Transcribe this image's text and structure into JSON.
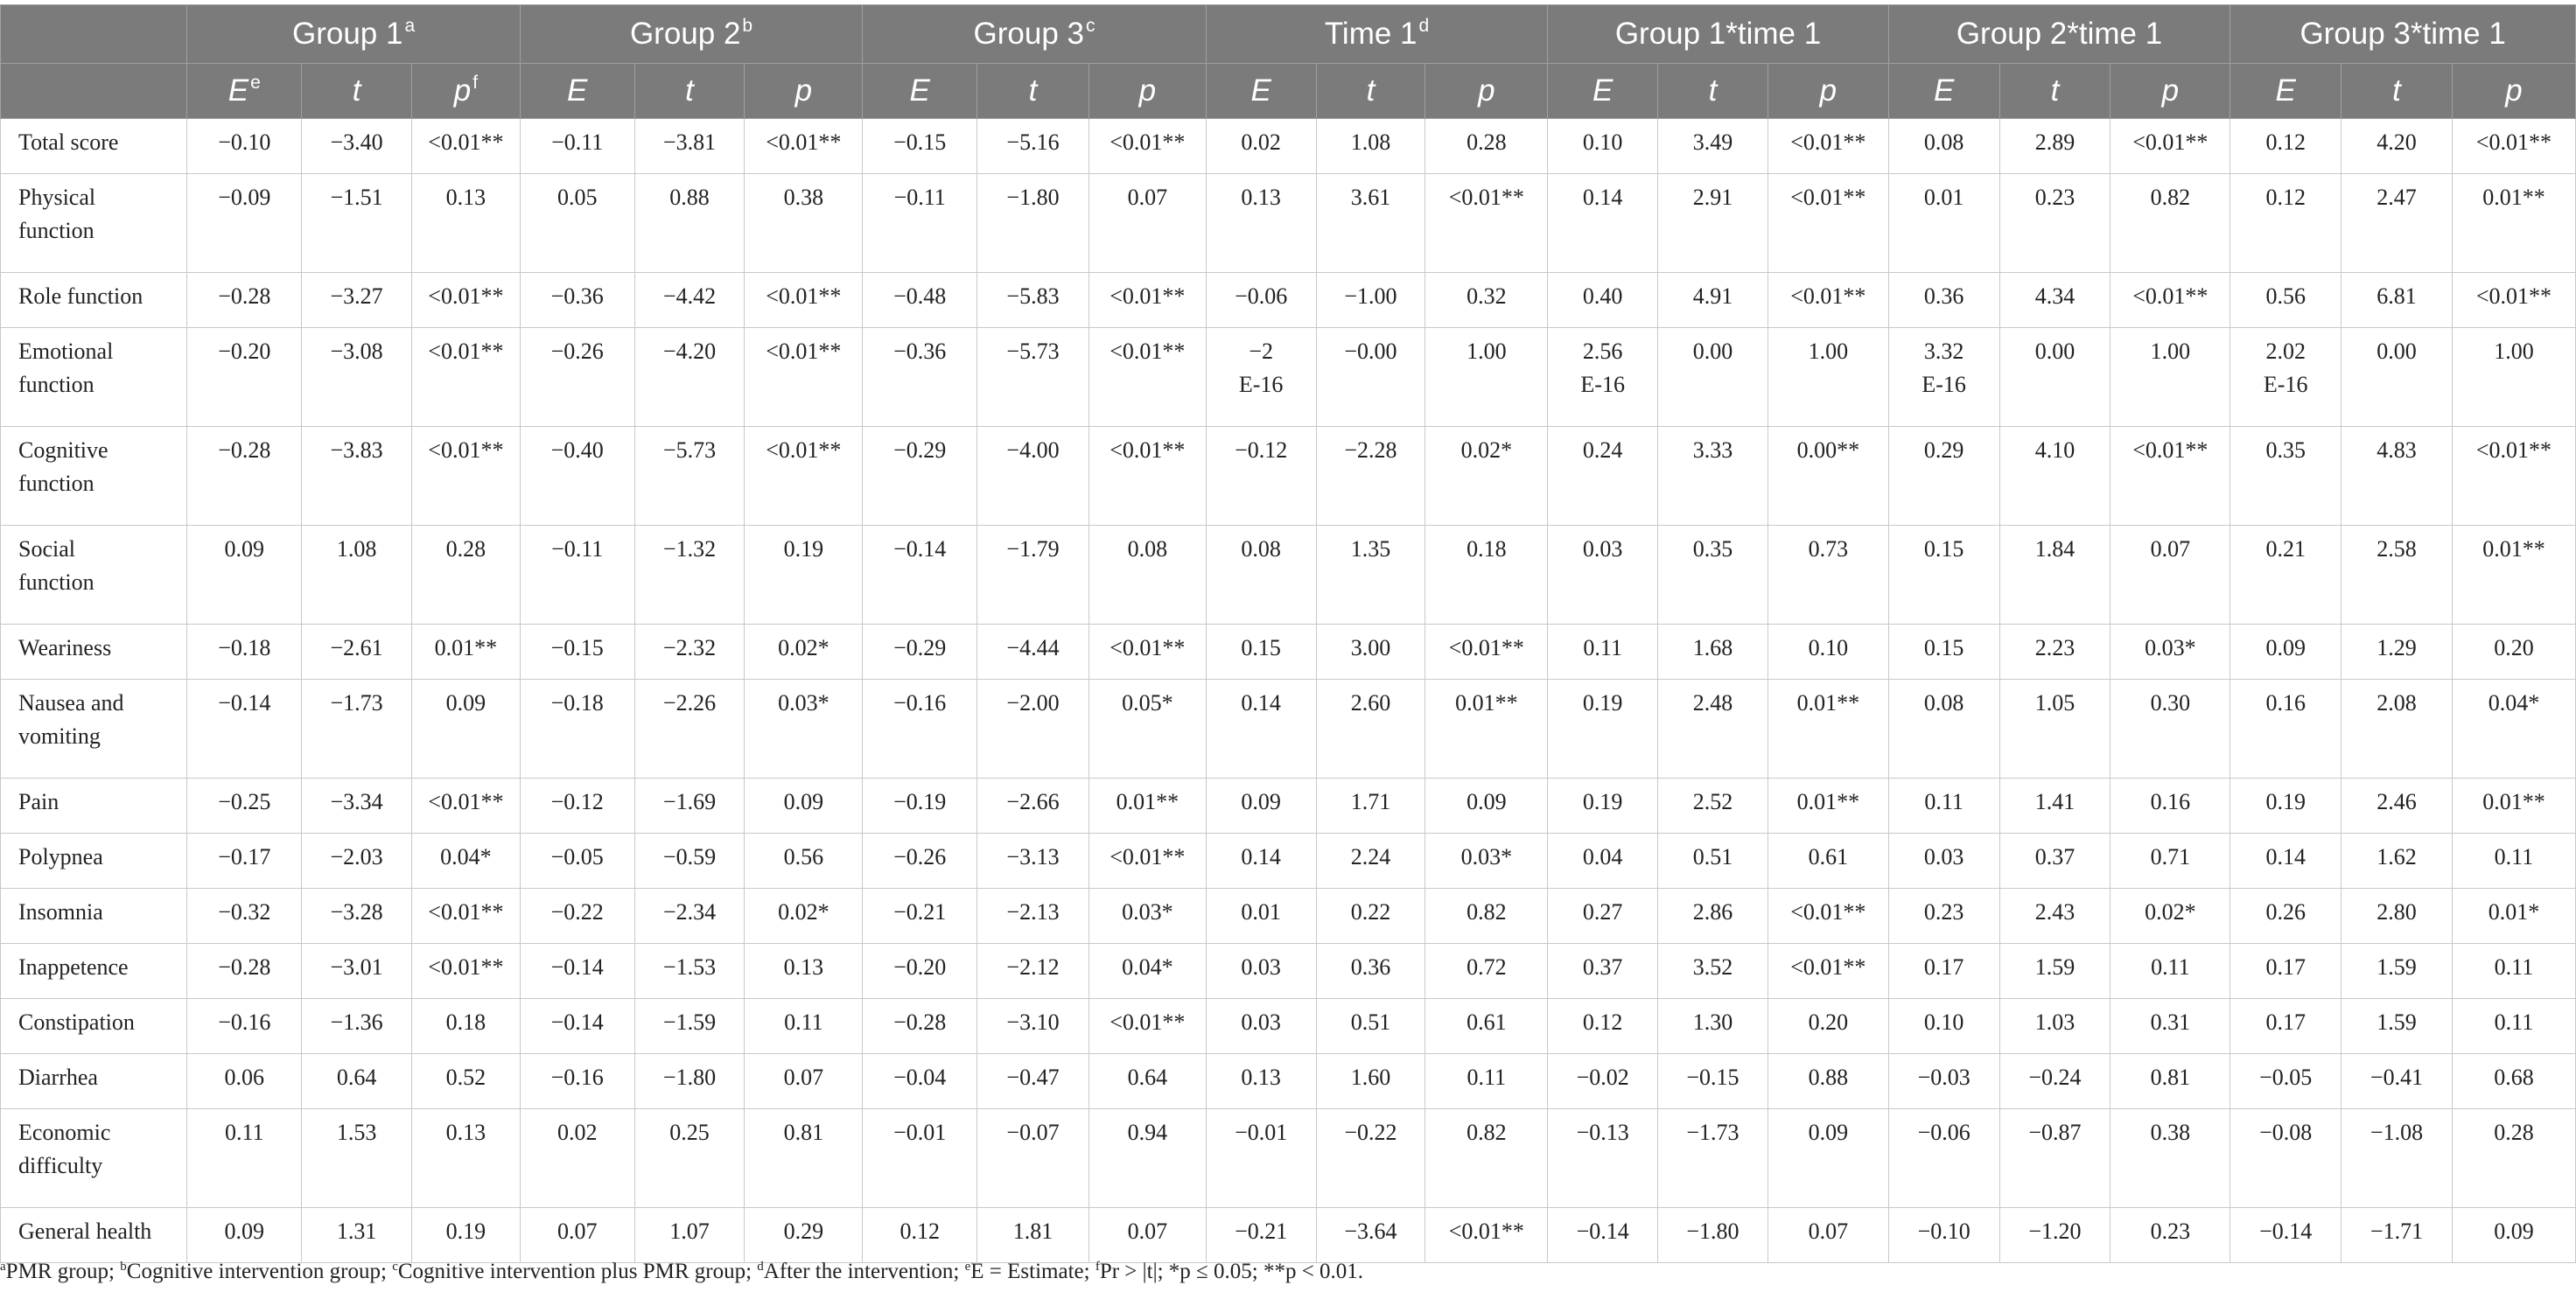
{
  "header": {
    "groups": [
      {
        "label": "Group 1",
        "sup": "a"
      },
      {
        "label": "Group 2",
        "sup": "b"
      },
      {
        "label": "Group 3",
        "sup": "c"
      },
      {
        "label": "Time 1",
        "sup": "d"
      },
      {
        "label": "Group 1*time 1",
        "sup": ""
      },
      {
        "label": "Group 2*time 1",
        "sup": ""
      },
      {
        "label": "Group 3*time 1",
        "sup": ""
      }
    ],
    "stats": [
      {
        "label": "E",
        "sup": "e"
      },
      {
        "label": "t",
        "sup": ""
      },
      {
        "label": "p",
        "sup": "f"
      },
      {
        "label": "E",
        "sup": ""
      },
      {
        "label": "t",
        "sup": ""
      },
      {
        "label": "p",
        "sup": ""
      },
      {
        "label": "E",
        "sup": ""
      },
      {
        "label": "t",
        "sup": ""
      },
      {
        "label": "p",
        "sup": ""
      },
      {
        "label": "E",
        "sup": ""
      },
      {
        "label": "t",
        "sup": ""
      },
      {
        "label": "p",
        "sup": ""
      },
      {
        "label": "E",
        "sup": ""
      },
      {
        "label": "t",
        "sup": ""
      },
      {
        "label": "p",
        "sup": ""
      },
      {
        "label": "E",
        "sup": ""
      },
      {
        "label": "t",
        "sup": ""
      },
      {
        "label": "p",
        "sup": ""
      },
      {
        "label": "E",
        "sup": ""
      },
      {
        "label": "t",
        "sup": ""
      },
      {
        "label": "p",
        "sup": ""
      }
    ]
  },
  "rows": [
    {
      "label": [
        "Total score"
      ],
      "cells": [
        [
          "−0.10"
        ],
        [
          "−3.40"
        ],
        [
          "<0.01**"
        ],
        [
          "−0.11"
        ],
        [
          "−3.81"
        ],
        [
          "<0.01**"
        ],
        [
          "−0.15"
        ],
        [
          "−5.16"
        ],
        [
          "<0.01**"
        ],
        [
          "0.02"
        ],
        [
          "1.08"
        ],
        [
          "0.28"
        ],
        [
          "0.10"
        ],
        [
          "3.49"
        ],
        [
          "<0.01**"
        ],
        [
          "0.08"
        ],
        [
          "2.89"
        ],
        [
          "<0.01**"
        ],
        [
          "0.12"
        ],
        [
          "4.20"
        ],
        [
          "<0.01**"
        ]
      ]
    },
    {
      "label": [
        "Physical",
        "function"
      ],
      "cells": [
        [
          "−0.09"
        ],
        [
          "−1.51"
        ],
        [
          "0.13"
        ],
        [
          "0.05"
        ],
        [
          "0.88"
        ],
        [
          "0.38"
        ],
        [
          "−0.11"
        ],
        [
          "−1.80"
        ],
        [
          "0.07"
        ],
        [
          "0.13"
        ],
        [
          "3.61"
        ],
        [
          "<0.01**"
        ],
        [
          "0.14"
        ],
        [
          "2.91"
        ],
        [
          "<0.01**"
        ],
        [
          "0.01"
        ],
        [
          "0.23"
        ],
        [
          "0.82"
        ],
        [
          "0.12"
        ],
        [
          "2.47"
        ],
        [
          "0.01**"
        ]
      ]
    },
    {
      "label": [
        "Role function"
      ],
      "cells": [
        [
          "−0.28"
        ],
        [
          "−3.27"
        ],
        [
          "<0.01**"
        ],
        [
          "−0.36"
        ],
        [
          "−4.42"
        ],
        [
          "<0.01**"
        ],
        [
          "−0.48"
        ],
        [
          "−5.83"
        ],
        [
          "<0.01**"
        ],
        [
          "−0.06"
        ],
        [
          "−1.00"
        ],
        [
          "0.32"
        ],
        [
          "0.40"
        ],
        [
          "4.91"
        ],
        [
          "<0.01**"
        ],
        [
          "0.36"
        ],
        [
          "4.34"
        ],
        [
          "<0.01**"
        ],
        [
          "0.56"
        ],
        [
          "6.81"
        ],
        [
          "<0.01**"
        ]
      ]
    },
    {
      "label": [
        "Emotional",
        "function"
      ],
      "cells": [
        [
          "−0.20"
        ],
        [
          "−3.08"
        ],
        [
          "<0.01**"
        ],
        [
          "−0.26"
        ],
        [
          "−4.20"
        ],
        [
          "<0.01**"
        ],
        [
          "−0.36"
        ],
        [
          "−5.73"
        ],
        [
          "<0.01**"
        ],
        [
          "−2",
          "E-16"
        ],
        [
          "−0.00"
        ],
        [
          "1.00"
        ],
        [
          "2.56",
          "E-16"
        ],
        [
          "0.00"
        ],
        [
          "1.00"
        ],
        [
          "3.32",
          "E-16"
        ],
        [
          "0.00"
        ],
        [
          "1.00"
        ],
        [
          "2.02",
          "E-16"
        ],
        [
          "0.00"
        ],
        [
          "1.00"
        ]
      ]
    },
    {
      "label": [
        "Cognitive",
        "function"
      ],
      "cells": [
        [
          "−0.28"
        ],
        [
          "−3.83"
        ],
        [
          "<0.01**"
        ],
        [
          "−0.40"
        ],
        [
          "−5.73"
        ],
        [
          "<0.01**"
        ],
        [
          "−0.29"
        ],
        [
          "−4.00"
        ],
        [
          "<0.01**"
        ],
        [
          "−0.12"
        ],
        [
          "−2.28"
        ],
        [
          "0.02*"
        ],
        [
          "0.24"
        ],
        [
          "3.33"
        ],
        [
          "0.00**"
        ],
        [
          "0.29"
        ],
        [
          "4.10"
        ],
        [
          "<0.01**"
        ],
        [
          "0.35"
        ],
        [
          "4.83"
        ],
        [
          "<0.01**"
        ]
      ]
    },
    {
      "label": [
        "Social",
        "function"
      ],
      "cells": [
        [
          "0.09"
        ],
        [
          "1.08"
        ],
        [
          "0.28"
        ],
        [
          "−0.11"
        ],
        [
          "−1.32"
        ],
        [
          "0.19"
        ],
        [
          "−0.14"
        ],
        [
          "−1.79"
        ],
        [
          "0.08"
        ],
        [
          "0.08"
        ],
        [
          "1.35"
        ],
        [
          "0.18"
        ],
        [
          "0.03"
        ],
        [
          "0.35"
        ],
        [
          "0.73"
        ],
        [
          "0.15"
        ],
        [
          "1.84"
        ],
        [
          "0.07"
        ],
        [
          "0.21"
        ],
        [
          "2.58"
        ],
        [
          "0.01**"
        ]
      ]
    },
    {
      "label": [
        "Weariness"
      ],
      "cells": [
        [
          "−0.18"
        ],
        [
          "−2.61"
        ],
        [
          "0.01**"
        ],
        [
          "−0.15"
        ],
        [
          "−2.32"
        ],
        [
          "0.02*"
        ],
        [
          "−0.29"
        ],
        [
          "−4.44"
        ],
        [
          "<0.01**"
        ],
        [
          "0.15"
        ],
        [
          "3.00"
        ],
        [
          "<0.01**"
        ],
        [
          "0.11"
        ],
        [
          "1.68"
        ],
        [
          "0.10"
        ],
        [
          "0.15"
        ],
        [
          "2.23"
        ],
        [
          "0.03*"
        ],
        [
          "0.09"
        ],
        [
          "1.29"
        ],
        [
          "0.20"
        ]
      ]
    },
    {
      "label": [
        "Nausea and",
        "vomiting"
      ],
      "cells": [
        [
          "−0.14"
        ],
        [
          "−1.73"
        ],
        [
          "0.09"
        ],
        [
          "−0.18"
        ],
        [
          "−2.26"
        ],
        [
          "0.03*"
        ],
        [
          "−0.16"
        ],
        [
          "−2.00"
        ],
        [
          "0.05*"
        ],
        [
          "0.14"
        ],
        [
          "2.60"
        ],
        [
          "0.01**"
        ],
        [
          "0.19"
        ],
        [
          "2.48"
        ],
        [
          "0.01**"
        ],
        [
          "0.08"
        ],
        [
          "1.05"
        ],
        [
          "0.30"
        ],
        [
          "0.16"
        ],
        [
          "2.08"
        ],
        [
          "0.04*"
        ]
      ]
    },
    {
      "label": [
        "Pain"
      ],
      "cells": [
        [
          "−0.25"
        ],
        [
          "−3.34"
        ],
        [
          "<0.01**"
        ],
        [
          "−0.12"
        ],
        [
          "−1.69"
        ],
        [
          "0.09"
        ],
        [
          "−0.19"
        ],
        [
          "−2.66"
        ],
        [
          "0.01**"
        ],
        [
          "0.09"
        ],
        [
          "1.71"
        ],
        [
          "0.09"
        ],
        [
          "0.19"
        ],
        [
          "2.52"
        ],
        [
          "0.01**"
        ],
        [
          "0.11"
        ],
        [
          "1.41"
        ],
        [
          "0.16"
        ],
        [
          "0.19"
        ],
        [
          "2.46"
        ],
        [
          "0.01**"
        ]
      ]
    },
    {
      "label": [
        "Polypnea"
      ],
      "cells": [
        [
          "−0.17"
        ],
        [
          "−2.03"
        ],
        [
          "0.04*"
        ],
        [
          "−0.05"
        ],
        [
          "−0.59"
        ],
        [
          "0.56"
        ],
        [
          "−0.26"
        ],
        [
          "−3.13"
        ],
        [
          "<0.01**"
        ],
        [
          "0.14"
        ],
        [
          "2.24"
        ],
        [
          "0.03*"
        ],
        [
          "0.04"
        ],
        [
          "0.51"
        ],
        [
          "0.61"
        ],
        [
          "0.03"
        ],
        [
          "0.37"
        ],
        [
          "0.71"
        ],
        [
          "0.14"
        ],
        [
          "1.62"
        ],
        [
          "0.11"
        ]
      ]
    },
    {
      "label": [
        "Insomnia"
      ],
      "cells": [
        [
          "−0.32"
        ],
        [
          "−3.28"
        ],
        [
          "<0.01**"
        ],
        [
          "−0.22"
        ],
        [
          "−2.34"
        ],
        [
          "0.02*"
        ],
        [
          "−0.21"
        ],
        [
          "−2.13"
        ],
        [
          "0.03*"
        ],
        [
          "0.01"
        ],
        [
          "0.22"
        ],
        [
          "0.82"
        ],
        [
          "0.27"
        ],
        [
          "2.86"
        ],
        [
          "<0.01**"
        ],
        [
          "0.23"
        ],
        [
          "2.43"
        ],
        [
          "0.02*"
        ],
        [
          "0.26"
        ],
        [
          "2.80"
        ],
        [
          "0.01*"
        ]
      ]
    },
    {
      "label": [
        "Inappetence"
      ],
      "cells": [
        [
          "−0.28"
        ],
        [
          "−3.01"
        ],
        [
          "<0.01**"
        ],
        [
          "−0.14"
        ],
        [
          "−1.53"
        ],
        [
          "0.13"
        ],
        [
          "−0.20"
        ],
        [
          "−2.12"
        ],
        [
          "0.04*"
        ],
        [
          "0.03"
        ],
        [
          "0.36"
        ],
        [
          "0.72"
        ],
        [
          "0.37"
        ],
        [
          "3.52"
        ],
        [
          "<0.01**"
        ],
        [
          "0.17"
        ],
        [
          "1.59"
        ],
        [
          "0.11"
        ],
        [
          "0.17"
        ],
        [
          "1.59"
        ],
        [
          "0.11"
        ]
      ]
    },
    {
      "label": [
        "Constipation"
      ],
      "cells": [
        [
          "−0.16"
        ],
        [
          "−1.36"
        ],
        [
          "0.18"
        ],
        [
          "−0.14"
        ],
        [
          "−1.59"
        ],
        [
          "0.11"
        ],
        [
          "−0.28"
        ],
        [
          "−3.10"
        ],
        [
          "<0.01**"
        ],
        [
          "0.03"
        ],
        [
          "0.51"
        ],
        [
          "0.61"
        ],
        [
          "0.12"
        ],
        [
          "1.30"
        ],
        [
          "0.20"
        ],
        [
          "0.10"
        ],
        [
          "1.03"
        ],
        [
          "0.31"
        ],
        [
          "0.17"
        ],
        [
          "1.59"
        ],
        [
          "0.11"
        ]
      ]
    },
    {
      "label": [
        "Diarrhea"
      ],
      "cells": [
        [
          "0.06"
        ],
        [
          "0.64"
        ],
        [
          "0.52"
        ],
        [
          "−0.16"
        ],
        [
          "−1.80"
        ],
        [
          "0.07"
        ],
        [
          "−0.04"
        ],
        [
          "−0.47"
        ],
        [
          "0.64"
        ],
        [
          "0.13"
        ],
        [
          "1.60"
        ],
        [
          "0.11"
        ],
        [
          "−0.02"
        ],
        [
          "−0.15"
        ],
        [
          "0.88"
        ],
        [
          "−0.03"
        ],
        [
          "−0.24"
        ],
        [
          "0.81"
        ],
        [
          "−0.05"
        ],
        [
          "−0.41"
        ],
        [
          "0.68"
        ]
      ]
    },
    {
      "label": [
        "Economic",
        "difficulty"
      ],
      "cells": [
        [
          "0.11"
        ],
        [
          "1.53"
        ],
        [
          "0.13"
        ],
        [
          "0.02"
        ],
        [
          "0.25"
        ],
        [
          "0.81"
        ],
        [
          "−0.01"
        ],
        [
          "−0.07"
        ],
        [
          "0.94"
        ],
        [
          "−0.01"
        ],
        [
          "−0.22"
        ],
        [
          "0.82"
        ],
        [
          "−0.13"
        ],
        [
          "−1.73"
        ],
        [
          "0.09"
        ],
        [
          "−0.06"
        ],
        [
          "−0.87"
        ],
        [
          "0.38"
        ],
        [
          "−0.08"
        ],
        [
          "−1.08"
        ],
        [
          "0.28"
        ]
      ]
    },
    {
      "label": [
        "General health"
      ],
      "cells": [
        [
          "0.09"
        ],
        [
          "1.31"
        ],
        [
          "0.19"
        ],
        [
          "0.07"
        ],
        [
          "1.07"
        ],
        [
          "0.29"
        ],
        [
          "0.12"
        ],
        [
          "1.81"
        ],
        [
          "0.07"
        ],
        [
          "−0.21"
        ],
        [
          "−3.64"
        ],
        [
          "<0.01**"
        ],
        [
          "−0.14"
        ],
        [
          "−1.80"
        ],
        [
          "0.07"
        ],
        [
          "−0.10"
        ],
        [
          "−1.20"
        ],
        [
          "0.23"
        ],
        [
          "−0.14"
        ],
        [
          "−1.71"
        ],
        [
          "0.09"
        ]
      ]
    }
  ],
  "footnote": [
    {
      "sup": "a",
      "text": "PMR group; "
    },
    {
      "sup": "b",
      "text": "Cognitive intervention group; "
    },
    {
      "sup": "c",
      "text": "Cognitive intervention plus PMR group; "
    },
    {
      "sup": "d",
      "text": "After the intervention; "
    },
    {
      "sup": "e",
      "text": "E = Estimate; "
    },
    {
      "sup": "f",
      "text": "Pr > |t|; *p ≤ 0.05; **p < 0.01."
    }
  ]
}
